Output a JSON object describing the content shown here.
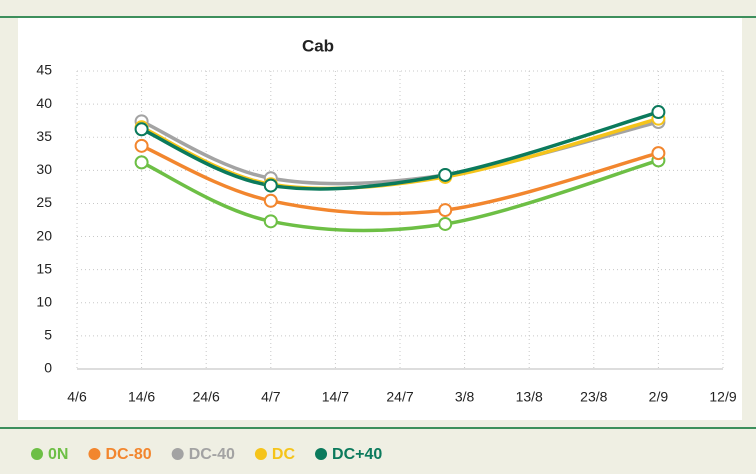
{
  "chart_data": {
    "type": "line",
    "title": "Cab",
    "x": [
      165,
      185,
      212,
      245
    ],
    "xlim": [
      155,
      255
    ],
    "xticks": [
      {
        "value": 155,
        "label": "4/6"
      },
      {
        "value": 165,
        "label": "14/6"
      },
      {
        "value": 175,
        "label": "24/6"
      },
      {
        "value": 185,
        "label": "4/7"
      },
      {
        "value": 195,
        "label": "14/7"
      },
      {
        "value": 205,
        "label": "24/7"
      },
      {
        "value": 215,
        "label": "3/8"
      },
      {
        "value": 225,
        "label": "13/8"
      },
      {
        "value": 235,
        "label": "23/8"
      },
      {
        "value": 245,
        "label": "2/9"
      },
      {
        "value": 255,
        "label": "12/9"
      }
    ],
    "ylim": [
      0,
      45
    ],
    "yticks": [
      0,
      5,
      10,
      15,
      20,
      25,
      30,
      35,
      40,
      45
    ],
    "grid": true,
    "smooth": true,
    "legend": "bottom",
    "series": [
      {
        "name": "0N",
        "color": "#6dbf45",
        "values": [
          31.2,
          22.3,
          21.9,
          31.5
        ]
      },
      {
        "name": "DC-80",
        "color": "#f2862e",
        "values": [
          33.7,
          25.4,
          24.0,
          32.6
        ]
      },
      {
        "name": "DC-40",
        "color": "#a3a3a3",
        "values": [
          37.4,
          28.8,
          29.3,
          37.3
        ]
      },
      {
        "name": "DC",
        "color": "#f5c41a",
        "values": [
          36.5,
          27.9,
          29.0,
          37.8
        ]
      },
      {
        "name": "DC+40",
        "color": "#0b7a5c",
        "values": [
          36.2,
          27.7,
          29.3,
          38.8
        ]
      }
    ]
  }
}
